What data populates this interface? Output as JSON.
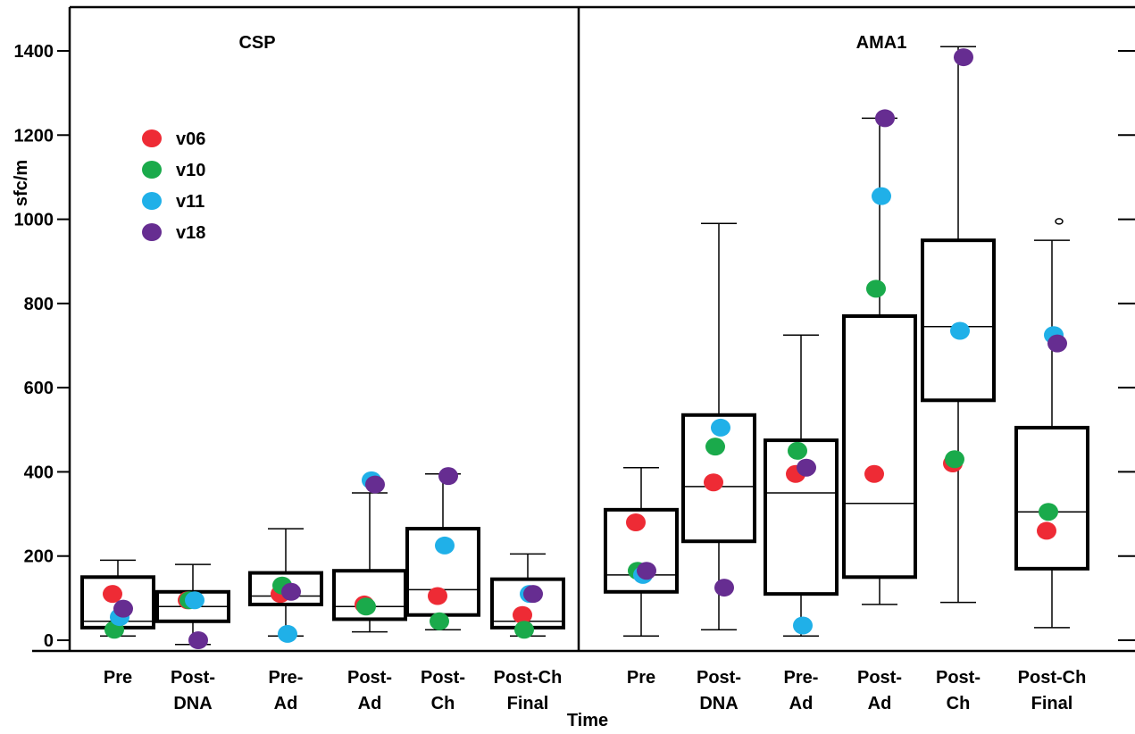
{
  "chart_data": {
    "type": "box",
    "ylabel": "sfc/m",
    "xlabel": "Time",
    "y_ticks": [
      "0",
      "200",
      "400",
      "600",
      "800",
      "1000",
      "1200",
      "1400"
    ],
    "ylim": [
      0,
      1400
    ],
    "categories": [
      [
        "Pre"
      ],
      [
        "Post-",
        "DNA"
      ],
      [
        "Pre-",
        "Ad"
      ],
      [
        "Post-",
        "Ad"
      ],
      [
        "Post-",
        "Ch"
      ],
      [
        "Post-Ch",
        "Final"
      ]
    ],
    "legend": [
      {
        "name": "v06",
        "color": "#ee2b35"
      },
      {
        "name": "v10",
        "color": "#1aaa4b"
      },
      {
        "name": "v11",
        "color": "#20b0e8"
      },
      {
        "name": "v18",
        "color": "#662d91"
      }
    ],
    "panels": [
      {
        "title": "CSP",
        "boxes": [
          {
            "whisker_low": 10,
            "q1": 30,
            "median": 45,
            "q3": 150,
            "whisker_high": 190,
            "points": {
              "v06": 110,
              "v10": 25,
              "v11": 55,
              "v18": 75
            }
          },
          {
            "whisker_low": -10,
            "q1": 45,
            "median": 80,
            "q3": 115,
            "whisker_high": 180,
            "points": {
              "v06": 95,
              "v10": 95,
              "v11": 95,
              "v18": 0
            }
          },
          {
            "whisker_low": 10,
            "q1": 85,
            "median": 105,
            "q3": 160,
            "whisker_high": 265,
            "points": {
              "v06": 110,
              "v10": 130,
              "v11": 15,
              "v18": 115
            }
          },
          {
            "whisker_low": 20,
            "q1": 50,
            "median": 80,
            "q3": 165,
            "whisker_high": 350,
            "points": {
              "v06": 85,
              "v10": 80,
              "v11": 380,
              "v18": 370
            }
          },
          {
            "whisker_low": 25,
            "q1": 60,
            "median": 120,
            "q3": 265,
            "whisker_high": 395,
            "points": {
              "v06": 105,
              "v10": 45,
              "v11": 225,
              "v18": 390
            }
          },
          {
            "whisker_low": 10,
            "q1": 30,
            "median": 45,
            "q3": 145,
            "whisker_high": 205,
            "points": {
              "v06": 60,
              "v10": 25,
              "v11": 110,
              "v18": 110
            }
          }
        ]
      },
      {
        "title": "AMA1",
        "boxes": [
          {
            "whisker_low": 10,
            "q1": 115,
            "median": 155,
            "q3": 310,
            "whisker_high": 410,
            "points": {
              "v06": 280,
              "v10": 165,
              "v11": 155,
              "v18": 165
            }
          },
          {
            "whisker_low": 25,
            "q1": 235,
            "median": 365,
            "q3": 535,
            "whisker_high": 990,
            "points": {
              "v06": 375,
              "v10": 460,
              "v11": 505,
              "v18": 125
            }
          },
          {
            "whisker_low": 10,
            "q1": 110,
            "median": 350,
            "q3": 475,
            "whisker_high": 725,
            "points": {
              "v06": 395,
              "v10": 450,
              "v11": 35,
              "v18": 410
            }
          },
          {
            "whisker_low": 85,
            "q1": 150,
            "median": 325,
            "q3": 770,
            "whisker_high": 1240,
            "points": {
              "v06": 395,
              "v10": 835,
              "v11": 1055,
              "v18": 1240
            }
          },
          {
            "whisker_low": 90,
            "q1": 570,
            "median": 745,
            "q3": 950,
            "whisker_high": 1410,
            "points": {
              "v06": 420,
              "v10": 430,
              "v11": 735,
              "v18": 1385
            }
          },
          {
            "whisker_low": 30,
            "q1": 170,
            "median": 305,
            "q3": 505,
            "whisker_high": 950,
            "outlier": 995,
            "points": {
              "v06": 260,
              "v10": 305,
              "v11": 725,
              "v18": 705
            }
          }
        ]
      }
    ]
  }
}
